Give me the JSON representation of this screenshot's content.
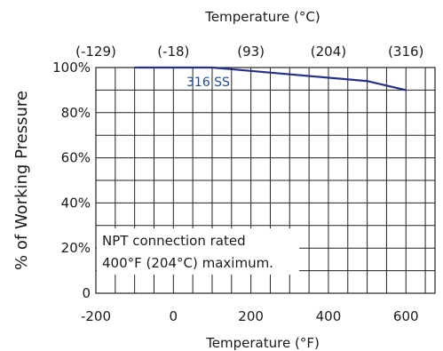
{
  "chart_data": {
    "type": "line",
    "title": "",
    "xlabel": "Temperature (°F)",
    "x2label": "Temperature (°C)",
    "ylabel": "% of Working Pressure",
    "xlim": [
      -200,
      675
    ],
    "ylim": [
      0,
      100
    ],
    "grid": true,
    "x_ticks": [
      -200,
      0,
      200,
      400,
      600
    ],
    "x_tick_labels": [
      "-200",
      "0",
      "200",
      "400",
      "600"
    ],
    "x2_ticks_f": [
      -200,
      0,
      200,
      400,
      600
    ],
    "x2_tick_labels": [
      "(-129)",
      "(-18)",
      "(93)",
      "(204)",
      "(316)"
    ],
    "y_ticks": [
      0,
      20,
      40,
      60,
      80,
      100
    ],
    "y_tick_labels": [
      "0",
      "20%",
      "40%",
      "60%",
      "80%",
      "100%"
    ],
    "series": [
      {
        "name": "316 SS",
        "color": "#23318c",
        "x": [
          -100,
          100,
          500,
          600
        ],
        "y": [
          100,
          100,
          94,
          90
        ]
      }
    ],
    "annotation": {
      "lines": [
        "NPT connection rated",
        "400°F (204°C) maximum."
      ]
    }
  }
}
